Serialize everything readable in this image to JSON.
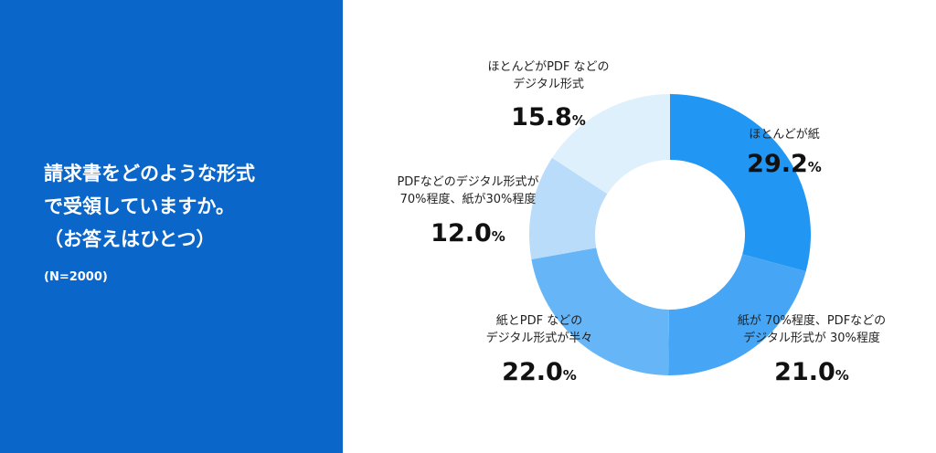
{
  "chart_data": {
    "type": "donut",
    "title": "請求書をどのような形式\nで受領していますか。\n（お答えはひとつ）",
    "subtitle": "(N=2000)",
    "categories": [
      "ほとんどが紙",
      "紙が 70%程度、PDFなどの\nデジタル形式が 30%程度",
      "紙とPDF などの\nデジタル形式が半々",
      "PDFなどのデジタル形式が\n70%程度、紙が30%程度",
      "ほとんどがPDF などの\nデジタル形式"
    ],
    "values": [
      29.2,
      21.0,
      22.0,
      12.0,
      15.8
    ],
    "value_labels": [
      "29.2",
      "21.0",
      "22.0",
      "12.0",
      "15.8"
    ],
    "unit": "%",
    "colors": [
      "#2196f3",
      "#46a6f5",
      "#66b5f7",
      "#b9dcfb",
      "#dff0fd"
    ]
  }
}
